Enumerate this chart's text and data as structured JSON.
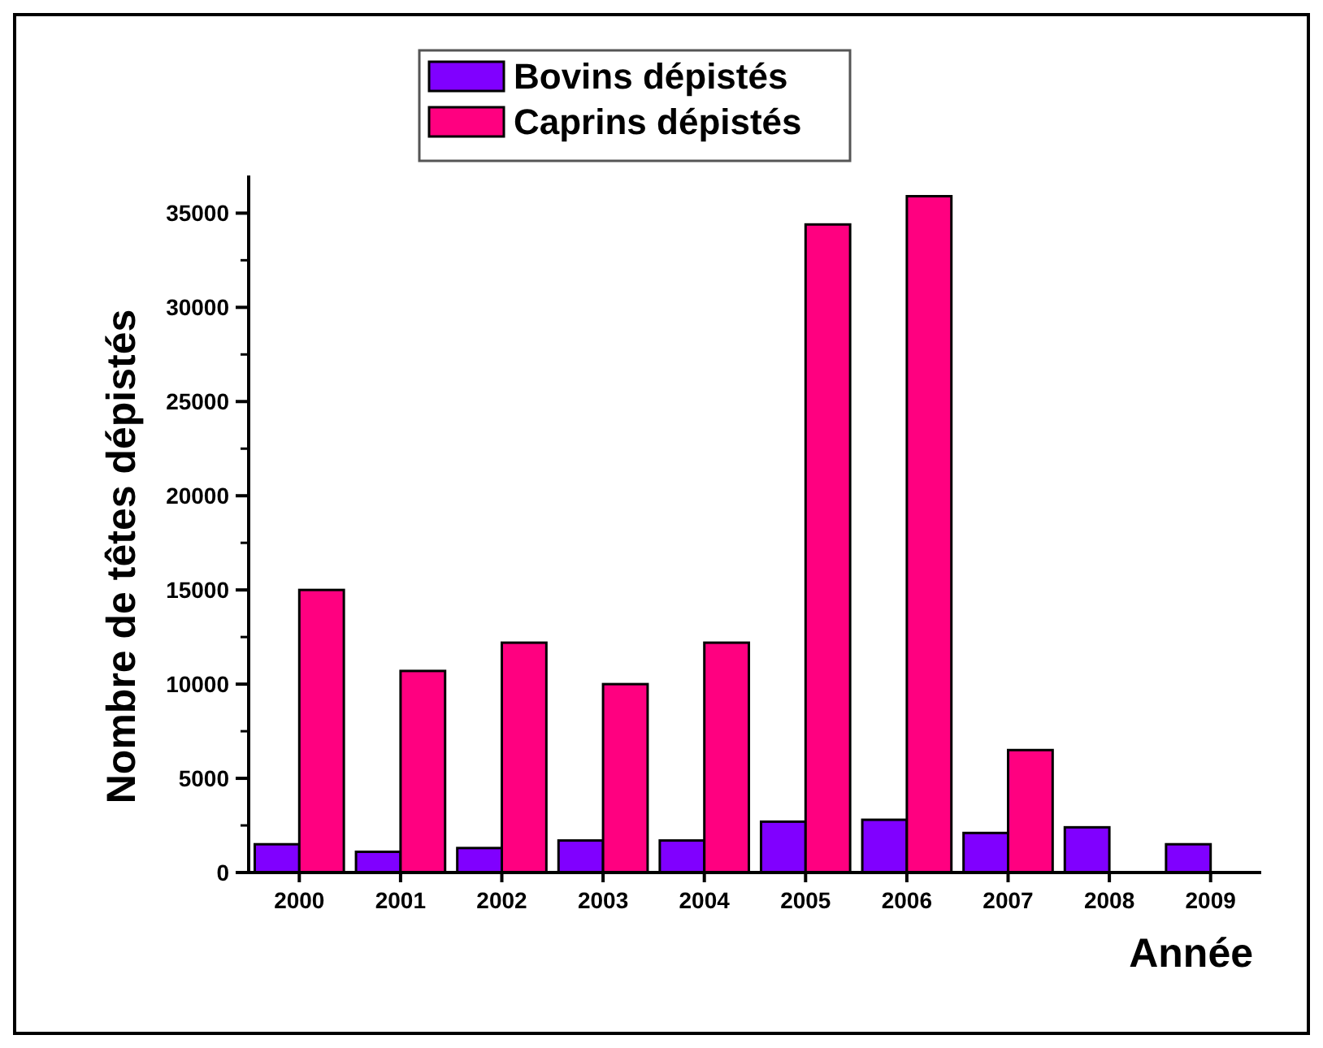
{
  "chart_data": {
    "type": "bar",
    "xlabel": "Année",
    "ylabel": "Nombre de têtes dépistés",
    "categories": [
      "2000",
      "2001",
      "2002",
      "2003",
      "2004",
      "2005",
      "2006",
      "2007",
      "2008",
      "2009"
    ],
    "series": [
      {
        "name": "Bovins dépistés",
        "color": "#8000ff",
        "values": [
          1500,
          1100,
          1300,
          1700,
          1700,
          2700,
          2800,
          2100,
          2400,
          1500
        ]
      },
      {
        "name": "Caprins dépistés",
        "color": "#ff0080",
        "values": [
          15000,
          10700,
          12200,
          10000,
          12200,
          34400,
          35900,
          6500,
          null,
          null
        ]
      }
    ],
    "ylim": [
      0,
      37000
    ],
    "yticks": [
      0,
      5000,
      10000,
      15000,
      20000,
      25000,
      30000,
      35000
    ],
    "legend": "top",
    "grid": false
  }
}
